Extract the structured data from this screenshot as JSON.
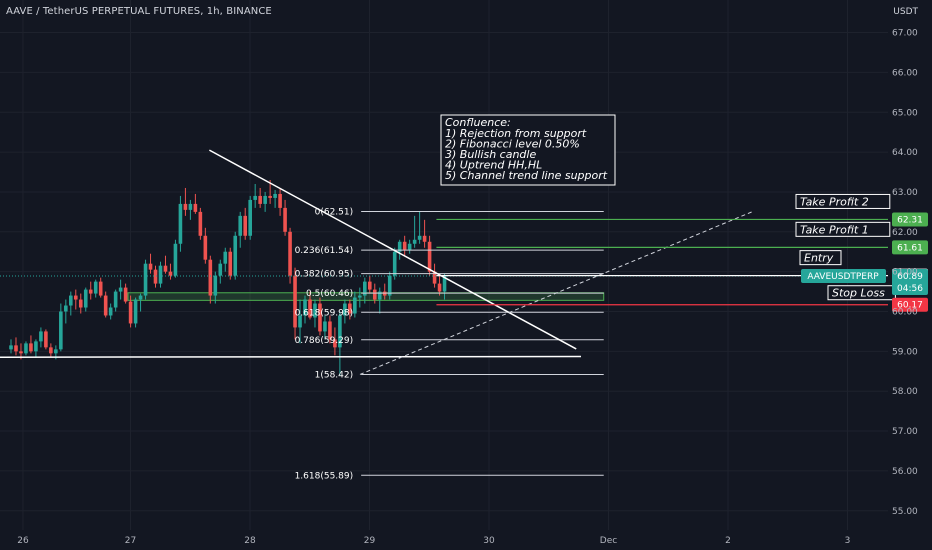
{
  "title": "AAVE / TetherUS PERPETUAL FUTURES, 1h, BINANCE",
  "currency": "USDT",
  "colors": {
    "background": "#131722",
    "up": "#26a69a",
    "down": "#ef5350",
    "take_profit": "#4caf50",
    "stop_loss": "#f23645",
    "text": "#d1d4dc"
  },
  "chart_data": {
    "type": "candlestick",
    "xlabel": "",
    "ylabel": "",
    "ylim": [
      54.5,
      67.5
    ],
    "y_ticks": [
      "55.00",
      "56.00",
      "57.00",
      "58.00",
      "59.00",
      "60.00",
      "61.00",
      "62.00",
      "63.00",
      "64.00",
      "65.00",
      "66.00",
      "67.00"
    ],
    "x_ticks": [
      {
        "label": "26",
        "t": 0.1
      },
      {
        "label": "27",
        "t": 1.0
      },
      {
        "label": "28",
        "t": 2.0
      },
      {
        "label": "29",
        "t": 3.0
      },
      {
        "label": "30",
        "t": 4.0
      },
      {
        "label": "Dec",
        "t": 5.0
      },
      {
        "label": "2",
        "t": 6.0
      },
      {
        "label": "3",
        "t": 7.0
      }
    ],
    "t_start": 0.0,
    "t_step": 0.0417,
    "candles": [
      [
        59.05,
        59.3,
        58.95,
        59.15
      ],
      [
        59.15,
        59.35,
        58.9,
        59.0
      ],
      [
        59.0,
        59.2,
        58.8,
        58.95
      ],
      [
        58.95,
        59.25,
        58.9,
        59.2
      ],
      [
        59.2,
        59.4,
        58.95,
        59.0
      ],
      [
        59.0,
        59.3,
        58.85,
        59.25
      ],
      [
        59.25,
        59.6,
        59.1,
        59.5
      ],
      [
        59.5,
        59.55,
        59.05,
        59.1
      ],
      [
        59.1,
        59.2,
        58.85,
        58.95
      ],
      [
        58.95,
        59.15,
        58.8,
        59.05
      ],
      [
        59.05,
        60.2,
        59.0,
        60.0
      ],
      [
        60.0,
        60.3,
        59.7,
        60.15
      ],
      [
        60.15,
        60.5,
        59.9,
        60.4
      ],
      [
        60.4,
        60.55,
        60.05,
        60.3
      ],
      [
        60.3,
        60.45,
        59.95,
        60.1
      ],
      [
        60.1,
        60.6,
        60.0,
        60.55
      ],
      [
        60.55,
        60.75,
        60.3,
        60.45
      ],
      [
        60.45,
        60.8,
        60.35,
        60.75
      ],
      [
        60.75,
        60.85,
        60.35,
        60.4
      ],
      [
        60.4,
        60.5,
        59.85,
        59.9
      ],
      [
        59.9,
        60.2,
        59.8,
        60.1
      ],
      [
        60.1,
        60.55,
        60.0,
        60.5
      ],
      [
        60.5,
        60.8,
        60.3,
        60.6
      ],
      [
        60.6,
        60.7,
        60.2,
        60.25
      ],
      [
        60.25,
        60.4,
        59.6,
        59.7
      ],
      [
        59.7,
        60.35,
        59.6,
        60.3
      ],
      [
        60.3,
        60.45,
        60.0,
        60.4
      ],
      [
        60.4,
        61.3,
        60.3,
        61.2
      ],
      [
        61.2,
        61.45,
        60.95,
        61.05
      ],
      [
        61.05,
        61.15,
        60.6,
        60.7
      ],
      [
        60.7,
        61.25,
        60.6,
        61.15
      ],
      [
        61.15,
        61.4,
        60.95,
        61.0
      ],
      [
        61.0,
        61.2,
        60.8,
        60.9
      ],
      [
        60.9,
        61.8,
        60.85,
        61.7
      ],
      [
        61.7,
        62.9,
        61.5,
        62.7
      ],
      [
        62.7,
        63.1,
        62.4,
        62.55
      ],
      [
        62.55,
        62.8,
        62.3,
        62.7
      ],
      [
        62.7,
        62.95,
        62.45,
        62.5
      ],
      [
        62.5,
        62.6,
        61.8,
        61.9
      ],
      [
        61.9,
        62.1,
        61.2,
        61.3
      ],
      [
        61.3,
        61.4,
        60.2,
        60.4
      ],
      [
        60.4,
        61.0,
        60.2,
        60.9
      ],
      [
        60.9,
        61.3,
        60.7,
        61.2
      ],
      [
        61.2,
        61.6,
        61.0,
        61.5
      ],
      [
        61.5,
        61.6,
        60.8,
        60.9
      ],
      [
        60.9,
        62.0,
        60.8,
        61.9
      ],
      [
        61.9,
        62.5,
        61.6,
        62.4
      ],
      [
        62.4,
        62.6,
        61.8,
        61.9
      ],
      [
        61.9,
        62.9,
        61.8,
        62.8
      ],
      [
        62.8,
        63.2,
        62.6,
        62.9
      ],
      [
        62.9,
        63.1,
        62.6,
        62.7
      ],
      [
        62.7,
        63.0,
        62.5,
        62.9
      ],
      [
        62.9,
        63.3,
        62.7,
        62.85
      ],
      [
        62.85,
        63.05,
        62.6,
        62.95
      ],
      [
        62.95,
        63.1,
        62.4,
        62.6
      ],
      [
        62.6,
        62.8,
        61.9,
        62.0
      ],
      [
        62.0,
        62.1,
        60.7,
        60.9
      ],
      [
        60.9,
        61.1,
        59.3,
        59.6
      ],
      [
        59.6,
        60.3,
        59.2,
        59.9
      ],
      [
        59.9,
        60.4,
        59.7,
        60.3
      ],
      [
        60.3,
        60.5,
        59.8,
        59.85
      ],
      [
        59.85,
        60.3,
        59.6,
        60.2
      ],
      [
        60.2,
        60.35,
        59.4,
        59.5
      ],
      [
        59.5,
        59.9,
        59.3,
        59.75
      ],
      [
        59.75,
        59.9,
        59.2,
        59.3
      ],
      [
        59.3,
        59.6,
        58.9,
        59.1
      ],
      [
        59.1,
        60.0,
        58.4,
        59.9
      ],
      [
        59.9,
        60.3,
        59.7,
        60.2
      ],
      [
        60.2,
        60.3,
        59.8,
        59.95
      ],
      [
        59.95,
        60.5,
        59.85,
        60.35
      ],
      [
        60.35,
        60.6,
        60.1,
        60.4
      ],
      [
        60.4,
        60.85,
        60.2,
        60.75
      ],
      [
        60.75,
        60.9,
        60.45,
        60.55
      ],
      [
        60.55,
        60.7,
        60.2,
        60.3
      ],
      [
        60.3,
        60.6,
        59.95,
        60.5
      ],
      [
        60.5,
        60.7,
        60.3,
        60.4
      ],
      [
        60.4,
        61.0,
        60.3,
        60.9
      ],
      [
        60.9,
        61.6,
        60.8,
        61.5
      ],
      [
        61.5,
        61.8,
        61.3,
        61.75
      ],
      [
        61.75,
        61.9,
        61.4,
        61.55
      ],
      [
        61.55,
        61.8,
        61.45,
        61.7
      ],
      [
        61.7,
        62.4,
        61.6,
        61.8
      ],
      [
        61.8,
        62.5,
        61.7,
        61.9
      ],
      [
        61.9,
        62.3,
        61.6,
        61.75
      ],
      [
        61.75,
        61.9,
        60.9,
        61.0
      ],
      [
        61.0,
        61.2,
        60.6,
        60.7
      ],
      [
        60.7,
        60.9,
        60.4,
        60.5
      ],
      [
        60.5,
        60.95,
        60.3,
        60.89
      ]
    ],
    "current_price": "60.89",
    "ticker": "AAVEUSDTPERP",
    "countdown": "04:56",
    "fib_levels": [
      {
        "label": "0(62.51)",
        "price": 62.51
      },
      {
        "label": "0.236(61.54)",
        "price": 61.54
      },
      {
        "label": "0.382(60.95)",
        "price": 60.95
      },
      {
        "label": "0.5(60.46)",
        "price": 60.46
      },
      {
        "label": "0.618(59.98)",
        "price": 59.98
      },
      {
        "label": "0.786(59.29)",
        "price": 59.29
      },
      {
        "label": "1(58.42)",
        "price": 58.42
      },
      {
        "label": "1.618(55.89)",
        "price": 55.89
      }
    ],
    "fib_t_range": [
      2.93,
      4.96
    ],
    "levels": [
      {
        "name": "Take Profit 2",
        "price": 62.31,
        "tag": "62.31",
        "kind": "take_profit",
        "t_start": 3.56
      },
      {
        "name": "Take Profit 1",
        "price": 61.61,
        "tag": "61.61",
        "kind": "take_profit",
        "t_start": 3.56
      },
      {
        "name": "Entry",
        "price": 60.9,
        "tag": "60.90",
        "kind": "entry",
        "t_start": 3.56
      },
      {
        "name": "Stop Loss",
        "price": 60.17,
        "tag": "60.17",
        "kind": "stop_loss",
        "t_start": 3.56
      }
    ],
    "support_zone": [
      60.28,
      60.47
    ],
    "support_zone_t": [
      0.0,
      4.96
    ],
    "trendlines": [
      {
        "name": "descending-trendline",
        "from": [
          1.66,
          64.05
        ],
        "to": [
          4.73,
          59.06
        ]
      },
      {
        "name": "horizontal-support",
        "from": [
          -1.0,
          58.85
        ],
        "to": [
          4.77,
          58.87
        ]
      }
    ],
    "channel_line": {
      "from": [
        2.92,
        58.42
      ],
      "to": [
        6.2,
        62.5
      ]
    },
    "annotation": {
      "heading": "Confluence:",
      "lines": [
        "1) Rejection from support",
        "2) Fibonacci level 0.50%",
        "3) Bullish candle",
        "4) Uptrend HH,HL",
        "5) Channel trend line support"
      ]
    }
  }
}
